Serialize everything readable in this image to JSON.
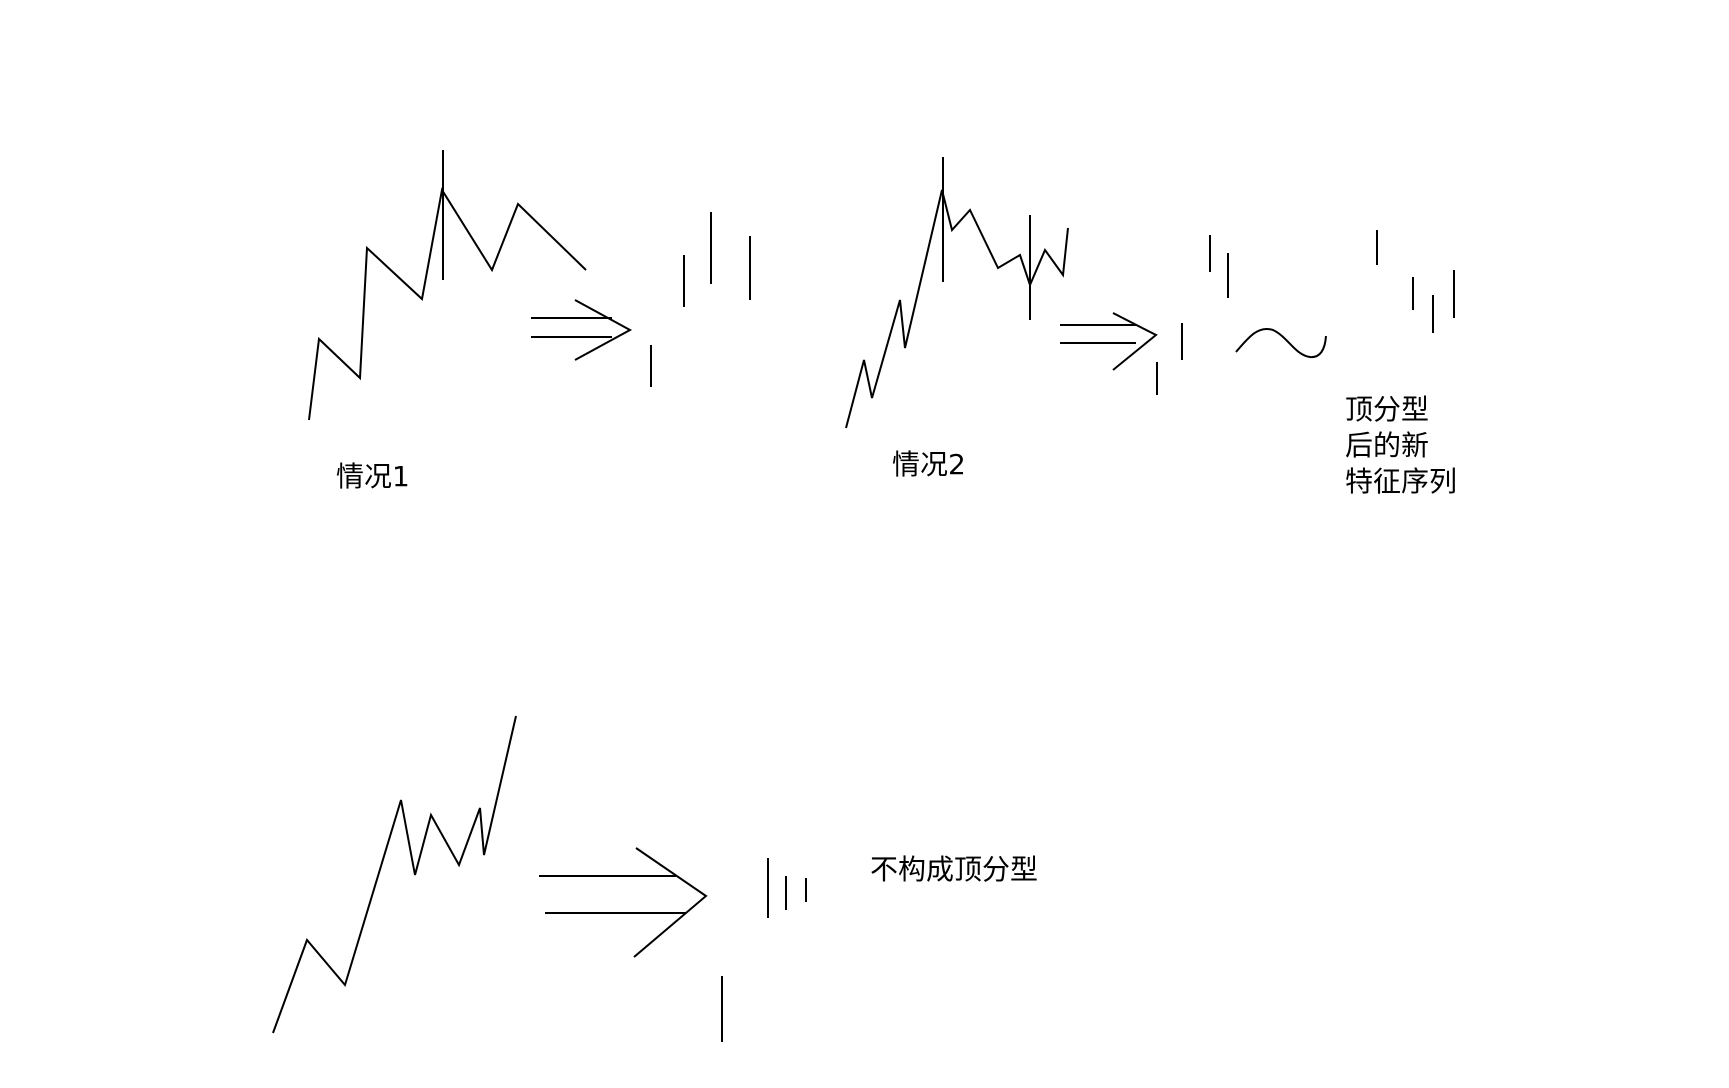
{
  "labels": {
    "case1": "情况1",
    "case2": "情况2",
    "new_sequence_line1": "顶分型",
    "new_sequence_line2": "后的新",
    "new_sequence_line3": "特征序列",
    "no_top_fractal": "不构成顶分型"
  }
}
